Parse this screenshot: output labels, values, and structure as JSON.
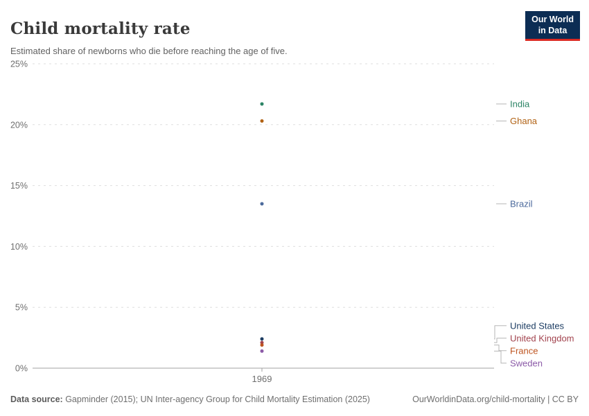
{
  "header": {
    "title": "Child mortality rate",
    "subtitle": "Estimated share of newborns who die before reaching the age of five.",
    "logo": {
      "line1": "Our World",
      "line2": "in Data",
      "bg_color": "#0C2D54",
      "accent_color": "#DC2A23"
    }
  },
  "chart_data": {
    "type": "scatter",
    "x": [
      1969
    ],
    "x_tick_labels": [
      "1969"
    ],
    "ylim": [
      0,
      25
    ],
    "yticks": [
      {
        "value": 0,
        "label": "0%"
      },
      {
        "value": 5,
        "label": "5%"
      },
      {
        "value": 10,
        "label": "10%"
      },
      {
        "value": 15,
        "label": "15%"
      },
      {
        "value": 20,
        "label": "20%"
      },
      {
        "value": 25,
        "label": "25%"
      }
    ],
    "grid": "dashed-horizontal",
    "legend_position": "right-entity-labels",
    "title": "Child mortality rate",
    "xlabel": "",
    "ylabel": "",
    "series": [
      {
        "name": "India",
        "values": [
          21.7
        ],
        "color": "#2C8465"
      },
      {
        "name": "Ghana",
        "values": [
          20.3
        ],
        "color": "#B16214"
      },
      {
        "name": "Brazil",
        "values": [
          13.5
        ],
        "color": "#4C6A9C"
      },
      {
        "name": "United States",
        "values": [
          2.4
        ],
        "color": "#1D3D63"
      },
      {
        "name": "United Kingdom",
        "values": [
          2.1
        ],
        "color": "#A2434E"
      },
      {
        "name": "France",
        "values": [
          1.9
        ],
        "color": "#BE5420"
      },
      {
        "name": "Sweden",
        "values": [
          1.4
        ],
        "color": "#8C5BA8"
      }
    ]
  },
  "palette": {
    "grid_line": "#dedede",
    "axis_line": "#a1a1a1",
    "tick_text": "#6e6e6e",
    "connector": "#b5b5b5"
  },
  "footer": {
    "source_label": "Data source:",
    "source_text": " Gapminder (2015); UN Inter-agency Group for Child Mortality Estimation (2025)",
    "link_text": "OurWorldinData.org/child-mortality | CC BY"
  }
}
